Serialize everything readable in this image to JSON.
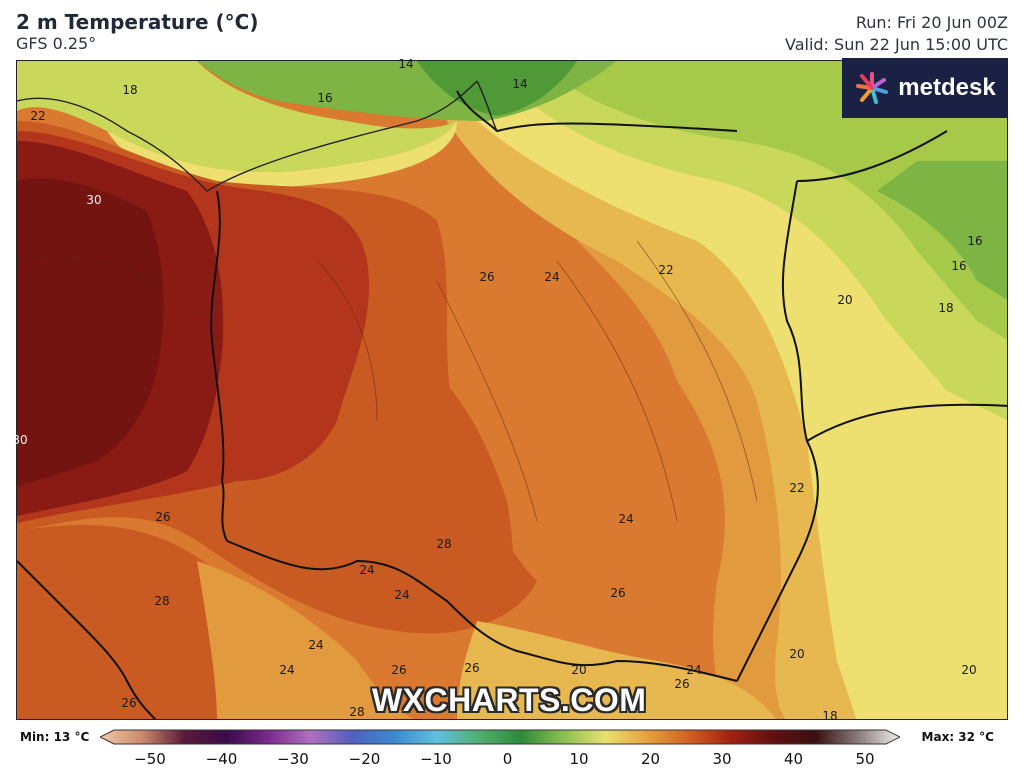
{
  "header": {
    "title": "2 m Temperature (°C)",
    "model": "GFS 0.25°",
    "run": "Run: Fri 20 Jun 00Z",
    "valid": "Valid: Sun 22 Jun 15:00 UTC"
  },
  "logo": {
    "text": "metdesk"
  },
  "watermark": "WXCHARTS.COM",
  "colors": {
    "very_hot": "#8a1a14",
    "hot": "#b3361c",
    "warm": "#c85a22",
    "mild_warm": "#d97a30",
    "orange": "#e29a3e",
    "amber": "#e8b850",
    "yellow": "#ede070",
    "yellow_green": "#c9d85a",
    "light_green": "#a6c94a",
    "green": "#7eb443",
    "dark_green": "#4f9a36"
  },
  "isotherm_labels": [
    {
      "text": "14"
    },
    {
      "text": "14"
    },
    {
      "text": "16"
    },
    {
      "text": "18"
    },
    {
      "text": "22"
    },
    {
      "text": "30"
    },
    {
      "text": "26"
    },
    {
      "text": "24"
    },
    {
      "text": "22"
    },
    {
      "text": "16"
    },
    {
      "text": "16"
    },
    {
      "text": "20"
    },
    {
      "text": "18"
    },
    {
      "text": "30"
    },
    {
      "text": "22"
    },
    {
      "text": "24"
    },
    {
      "text": "26"
    },
    {
      "text": "28"
    },
    {
      "text": "24"
    },
    {
      "text": "24"
    },
    {
      "text": "26"
    },
    {
      "text": "28"
    },
    {
      "text": "24"
    },
    {
      "text": "24"
    },
    {
      "text": "26"
    },
    {
      "text": "26"
    },
    {
      "text": "20"
    },
    {
      "text": "24"
    },
    {
      "text": "26"
    },
    {
      "text": "20"
    },
    {
      "text": "20"
    },
    {
      "text": "26"
    },
    {
      "text": "28"
    },
    {
      "text": "18"
    }
  ],
  "colorbar": {
    "min_label": "Min: 13 °C",
    "max_label": "Max: 32 °C",
    "ticks": [
      "−50",
      "−40",
      "−30",
      "−20",
      "−10",
      "0",
      "10",
      "20",
      "30",
      "40",
      "50"
    ],
    "stops": [
      "#f3c9a6",
      "#c98a6a",
      "#5a1a3a",
      "#3a0a4a",
      "#7a2a8a",
      "#b070c0",
      "#5060c0",
      "#3a8ad0",
      "#60c0e0",
      "#50b070",
      "#2e8a3a",
      "#8ac050",
      "#e8e070",
      "#e8a040",
      "#d06020",
      "#a02010",
      "#601010",
      "#3a1010",
      "#8a7a7a",
      "#f0f0f0"
    ]
  }
}
